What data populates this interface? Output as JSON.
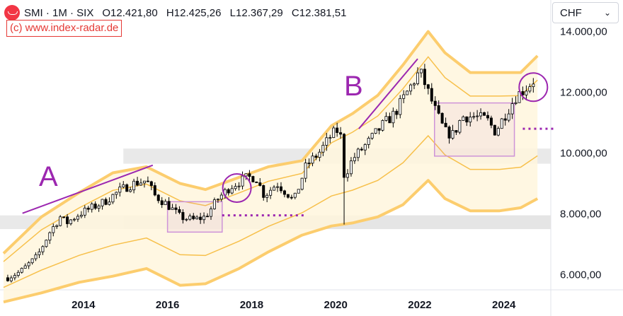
{
  "header": {
    "symbol": "SMI · 1M · SIX",
    "open": "O12.421,80",
    "high": "H12.425,26",
    "low": "L12.367,29",
    "close": "C12.381,51",
    "credit": "(c) www.index-radar.de"
  },
  "currency": {
    "label": "CHF"
  },
  "annotations": {
    "a": "A",
    "b": "B"
  },
  "colors": {
    "up": "#ffffff",
    "down": "#000000",
    "band": "#fccd6e",
    "band_inner": "#f7c04b",
    "accent": "#9c27b0",
    "zone": "#e4e4e4"
  },
  "chart_data": {
    "type": "candlestick",
    "title": "",
    "xlabel": "",
    "ylabel": "",
    "y_ticks": [
      "14.000,00",
      "12.000,00",
      "10.000,00",
      "8.000,00",
      "6.000,00"
    ],
    "y_tick_values": [
      14000,
      12000,
      10000,
      8000,
      6000
    ],
    "x_ticks": [
      "2014",
      "2016",
      "2018",
      "2020",
      "2022",
      "2024"
    ],
    "x_tick_values": [
      2014,
      2016,
      2018,
      2020,
      2022,
      2024
    ],
    "xlim": [
      2012.1,
      2025.2
    ],
    "ylim": [
      5500,
      14200
    ],
    "series_points": [
      [
        2012.2,
        5900
      ],
      [
        2012.5,
        6100
      ],
      [
        2012.9,
        6600
      ],
      [
        2013.2,
        7400
      ],
      [
        2013.45,
        7900
      ],
      [
        2013.6,
        7700
      ],
      [
        2013.9,
        8000
      ],
      [
        2014.2,
        8200
      ],
      [
        2014.5,
        8400
      ],
      [
        2014.9,
        8800
      ],
      [
        2015.2,
        9000
      ],
      [
        2015.5,
        9100
      ],
      [
        2015.7,
        8600
      ],
      [
        2016.0,
        8300
      ],
      [
        2016.3,
        7900
      ],
      [
        2016.6,
        7800
      ],
      [
        2016.9,
        7900
      ],
      [
        2017.2,
        8500
      ],
      [
        2017.5,
        8900
      ],
      [
        2017.9,
        9200
      ],
      [
        2018.1,
        9200
      ],
      [
        2018.3,
        8600
      ],
      [
        2018.6,
        9000
      ],
      [
        2018.9,
        8600
      ],
      [
        2019.0,
        8400
      ],
      [
        2019.3,
        9600
      ],
      [
        2019.6,
        10000
      ],
      [
        2019.9,
        10600
      ],
      [
        2020.1,
        10800
      ],
      [
        2020.2,
        9200
      ],
      [
        2020.4,
        9800
      ],
      [
        2020.8,
        10400
      ],
      [
        2021.1,
        10900
      ],
      [
        2021.4,
        11300
      ],
      [
        2021.7,
        12000
      ],
      [
        2022.0,
        12700
      ],
      [
        2022.2,
        12000
      ],
      [
        2022.4,
        11300
      ],
      [
        2022.6,
        10700
      ],
      [
        2022.8,
        10600
      ],
      [
        2023.0,
        11200
      ],
      [
        2023.3,
        11200
      ],
      [
        2023.6,
        11100
      ],
      [
        2023.8,
        10700
      ],
      [
        2024.0,
        11200
      ],
      [
        2024.3,
        11900
      ],
      [
        2024.5,
        12100
      ],
      [
        2024.7,
        12380
      ]
    ],
    "channel_upper": [
      [
        2012.1,
        6700
      ],
      [
        2013.0,
        7900
      ],
      [
        2013.9,
        8700
      ],
      [
        2014.7,
        9350
      ],
      [
        2015.5,
        9550
      ],
      [
        2016.3,
        9000
      ],
      [
        2016.9,
        8800
      ],
      [
        2017.7,
        9200
      ],
      [
        2018.4,
        9550
      ],
      [
        2019.2,
        9750
      ],
      [
        2019.9,
        10900
      ],
      [
        2020.4,
        11300
      ],
      [
        2021.0,
        11900
      ],
      [
        2021.6,
        12900
      ],
      [
        2022.2,
        14000
      ],
      [
        2022.6,
        13300
      ],
      [
        2023.2,
        12650
      ],
      [
        2023.9,
        12650
      ],
      [
        2024.4,
        12650
      ],
      [
        2024.8,
        13200
      ]
    ],
    "channel_lower": [
      [
        2012.1,
        5100
      ],
      [
        2013.0,
        5400
      ],
      [
        2013.9,
        5750
      ],
      [
        2014.7,
        5950
      ],
      [
        2015.5,
        6200
      ],
      [
        2016.3,
        5650
      ],
      [
        2016.9,
        5700
      ],
      [
        2017.7,
        6200
      ],
      [
        2018.4,
        6750
      ],
      [
        2019.2,
        7300
      ],
      [
        2019.9,
        7600
      ],
      [
        2020.4,
        7700
      ],
      [
        2021.0,
        7900
      ],
      [
        2021.6,
        8300
      ],
      [
        2022.2,
        9100
      ],
      [
        2022.6,
        8500
      ],
      [
        2023.2,
        8100
      ],
      [
        2023.9,
        8100
      ],
      [
        2024.4,
        8200
      ],
      [
        2024.8,
        8500
      ]
    ],
    "support_zones": [
      [
        9650,
        10150
      ],
      [
        7500,
        7950
      ]
    ],
    "range_boxes": [
      {
        "x": [
          2016.0,
          2017.3
        ],
        "y": [
          7400,
          8400
        ]
      },
      {
        "x": [
          2022.35,
          2024.25
        ],
        "y": [
          9900,
          11650
        ]
      }
    ],
    "trend_lines": [
      {
        "label": "A",
        "points": [
          [
            2012.55,
            8020
          ],
          [
            2015.65,
            9600
          ]
        ]
      },
      {
        "label": "B",
        "points": [
          [
            2020.55,
            10800
          ],
          [
            2021.95,
            13100
          ]
        ]
      }
    ],
    "dotted_levels": [
      {
        "x": [
          2017.3,
          2019.3
        ],
        "y": 7950
      },
      {
        "x": [
          2024.45,
          2025.2
        ],
        "y": 10800
      }
    ],
    "highlight_circles": [
      {
        "x": 2017.65,
        "y": 8850
      },
      {
        "x": 2024.7,
        "y": 12170
      }
    ]
  }
}
